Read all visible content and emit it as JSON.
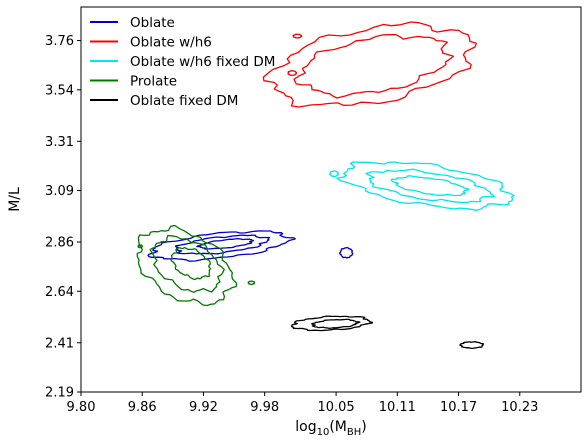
{
  "chart_data": {
    "type": "contour",
    "xlabel_base": "log",
    "xlabel_sub": "10",
    "xlabel_rest": "(M",
    "xlabel_rest_sub": "BH",
    "xlabel_close": ")",
    "ylabel": "M/L",
    "xlim": [
      9.8,
      10.29
    ],
    "ylim": [
      2.19,
      3.91
    ],
    "xticks": [
      "9.80",
      "9.86",
      "9.92",
      "9.98",
      "10.05",
      "10.11",
      "10.17",
      "10.23"
    ],
    "xtick_values": [
      9.8,
      9.86,
      9.92,
      9.98,
      10.05,
      10.11,
      10.17,
      10.23
    ],
    "yticks": [
      "2.19",
      "2.41",
      "2.64",
      "2.86",
      "3.09",
      "3.31",
      "3.54",
      "3.76"
    ],
    "ytick_values": [
      2.19,
      2.41,
      2.64,
      2.86,
      3.09,
      3.31,
      3.54,
      3.76
    ],
    "legend_position": "top-left",
    "series": [
      {
        "name": "Oblate",
        "color": "#0000cc",
        "contours": [
          {
            "cx": 9.936,
            "cy": 2.844,
            "rx": 0.068,
            "ry": 0.055,
            "rot": -6
          },
          {
            "cx": 9.938,
            "cy": 2.848,
            "rx": 0.045,
            "ry": 0.035,
            "rot": -6
          },
          {
            "cx": 9.942,
            "cy": 2.852,
            "rx": 0.026,
            "ry": 0.018,
            "rot": -6
          },
          {
            "cx": 10.06,
            "cy": 2.812,
            "rx": 0.006,
            "ry": 0.022,
            "rot": 0
          }
        ]
      },
      {
        "name": "Oblate w/h6",
        "color": "#ff0000",
        "contours": [
          {
            "cx": 10.085,
            "cy": 3.65,
            "rx": 0.1,
            "ry": 0.165,
            "rot": -10
          },
          {
            "cx": 10.087,
            "cy": 3.65,
            "rx": 0.074,
            "ry": 0.12,
            "rot": -10
          },
          {
            "cx": 10.007,
            "cy": 3.615,
            "rx": 0.004,
            "ry": 0.01,
            "rot": 0
          },
          {
            "cx": 10.012,
            "cy": 3.78,
            "rx": 0.004,
            "ry": 0.008,
            "rot": 0
          }
        ]
      },
      {
        "name": "Oblate w/h6 fixed DM",
        "color": "#00e5ee",
        "contours": [
          {
            "cx": 10.139,
            "cy": 3.114,
            "rx": 0.083,
            "ry": 0.09,
            "rot": 8
          },
          {
            "cx": 10.141,
            "cy": 3.11,
            "rx": 0.06,
            "ry": 0.06,
            "rot": 8
          },
          {
            "cx": 10.142,
            "cy": 3.11,
            "rx": 0.036,
            "ry": 0.035,
            "rot": 8
          },
          {
            "cx": 10.048,
            "cy": 3.165,
            "rx": 0.004,
            "ry": 0.012,
            "rot": 0
          }
        ]
      },
      {
        "name": "Prolate",
        "color": "#007700",
        "contours": [
          {
            "cx": 9.902,
            "cy": 2.752,
            "rx": 0.05,
            "ry": 0.145,
            "rot": 28
          },
          {
            "cx": 9.904,
            "cy": 2.76,
            "rx": 0.036,
            "ry": 0.105,
            "rot": 28
          },
          {
            "cx": 9.908,
            "cy": 2.765,
            "rx": 0.02,
            "ry": 0.06,
            "rot": 28
          },
          {
            "cx": 9.858,
            "cy": 2.841,
            "rx": 0.002,
            "ry": 0.006,
            "rot": 0
          },
          {
            "cx": 9.967,
            "cy": 2.678,
            "rx": 0.003,
            "ry": 0.007,
            "rot": 0
          }
        ]
      },
      {
        "name": "Oblate fixed DM",
        "color": "#000000",
        "contours": [
          {
            "cx": 10.045,
            "cy": 2.497,
            "rx": 0.038,
            "ry": 0.03,
            "rot": -3
          },
          {
            "cx": 10.049,
            "cy": 2.495,
            "rx": 0.022,
            "ry": 0.018,
            "rot": -3
          },
          {
            "cx": 10.183,
            "cy": 2.4,
            "rx": 0.011,
            "ry": 0.014,
            "rot": 0
          }
        ]
      }
    ]
  }
}
